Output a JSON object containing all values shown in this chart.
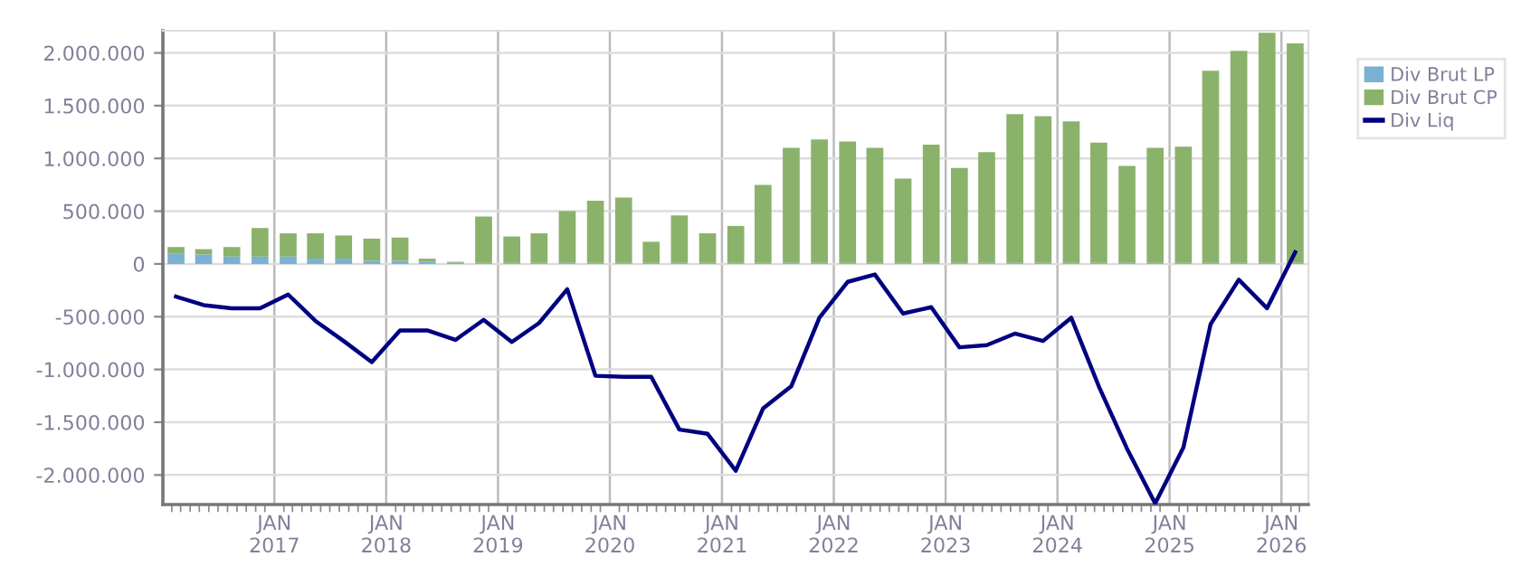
{
  "chart_data": {
    "type": "bar",
    "stacked": true,
    "x": [
      "2016-02-15",
      "2016-05-15",
      "2016-08-15",
      "2016-11-15",
      "2017-02-15",
      "2017-05-15",
      "2017-08-15",
      "2017-11-15",
      "2018-02-15",
      "2018-05-15",
      "2018-08-15",
      "2018-11-15",
      "2019-02-15",
      "2019-05-15",
      "2019-08-15",
      "2019-11-15",
      "2020-02-15",
      "2020-05-15",
      "2020-08-15",
      "2020-11-15",
      "2021-02-15",
      "2021-05-15",
      "2021-08-15",
      "2021-11-15",
      "2022-02-15",
      "2022-05-15",
      "2022-08-15",
      "2022-11-15",
      "2023-02-15",
      "2023-05-15",
      "2023-08-15",
      "2023-11-15",
      "2024-02-15",
      "2024-05-15",
      "2024-08-15",
      "2024-11-15",
      "2025-02-15",
      "2025-05-15",
      "2025-08-15",
      "2025-11-15",
      "2026-02-15"
    ],
    "series": [
      {
        "name": "Div Brut LP",
        "color": "#7ab0d4",
        "values": [
          100000,
          90000,
          70000,
          70000,
          70000,
          50000,
          50000,
          30000,
          30000,
          20000,
          10000,
          10000,
          10000,
          10000,
          10000,
          10000,
          10000,
          10000,
          10000,
          10000,
          10000,
          10000,
          10000,
          10000,
          10000,
          10000,
          10000,
          10000,
          10000,
          10000,
          10000,
          10000,
          10000,
          10000,
          10000,
          10000,
          10000,
          10000,
          10000,
          10000,
          10000
        ]
      },
      {
        "name": "Div Brut CP",
        "color": "#8ab26b",
        "values": [
          60000,
          50000,
          90000,
          270000,
          220000,
          240000,
          220000,
          210000,
          220000,
          30000,
          10000,
          440000,
          250000,
          280000,
          490000,
          590000,
          620000,
          200000,
          450000,
          280000,
          350000,
          740000,
          1090000,
          1170000,
          1150000,
          1090000,
          800000,
          1120000,
          900000,
          1050000,
          1410000,
          1390000,
          1340000,
          1140000,
          920000,
          1090000,
          1100000,
          1820000,
          2010000,
          2180000,
          2080000
        ]
      },
      {
        "name": "Div Liq",
        "type": "line",
        "color": "#000080",
        "values": [
          -310000,
          -390000,
          -420000,
          -420000,
          -290000,
          -540000,
          -730000,
          -930000,
          -630000,
          -630000,
          -720000,
          -530000,
          -740000,
          -560000,
          -240000,
          -1060000,
          -1070000,
          -1070000,
          -1570000,
          -1610000,
          -1960000,
          -1370000,
          -1160000,
          -510000,
          -170000,
          -100000,
          -470000,
          -410000,
          -790000,
          -770000,
          -660000,
          -730000,
          -510000,
          -1160000,
          -1750000,
          -2270000,
          -1740000,
          -570000,
          -150000,
          -420000,
          110000
        ]
      }
    ],
    "xlim": [
      "2016-01-03",
      "2026-03-30"
    ],
    "xticks": [
      {
        "value": "2017-01-01",
        "label": "JAN\n2017"
      },
      {
        "value": "2018-01-01",
        "label": "JAN\n2018"
      },
      {
        "value": "2019-01-01",
        "label": "JAN\n2019"
      },
      {
        "value": "2020-01-01",
        "label": "JAN\n2020"
      },
      {
        "value": "2021-01-01",
        "label": "JAN\n2021"
      },
      {
        "value": "2022-01-01",
        "label": "JAN\n2022"
      },
      {
        "value": "2023-01-01",
        "label": "JAN\n2023"
      },
      {
        "value": "2024-01-01",
        "label": "JAN\n2024"
      },
      {
        "value": "2025-01-01",
        "label": "JAN\n2025"
      },
      {
        "value": "2026-01-01",
        "label": "JAN\n2026"
      }
    ],
    "ylim": [
      -2280000,
      2210000
    ],
    "yticks": [
      {
        "value": -2000000,
        "label": "-2.000.000"
      },
      {
        "value": -1500000,
        "label": "-1.500.000"
      },
      {
        "value": -1000000,
        "label": "-1.000.000"
      },
      {
        "value": -500000,
        "label": "-500.000"
      },
      {
        "value": 0,
        "label": "0"
      },
      {
        "value": 500000,
        "label": "500.000"
      },
      {
        "value": 1000000,
        "label": "1.000.000"
      },
      {
        "value": 1500000,
        "label": "1.500.000"
      },
      {
        "value": 2000000,
        "label": "2.000.000"
      }
    ],
    "grid": true,
    "legend": "top right",
    "marker": "none",
    "line_style": "solid"
  }
}
